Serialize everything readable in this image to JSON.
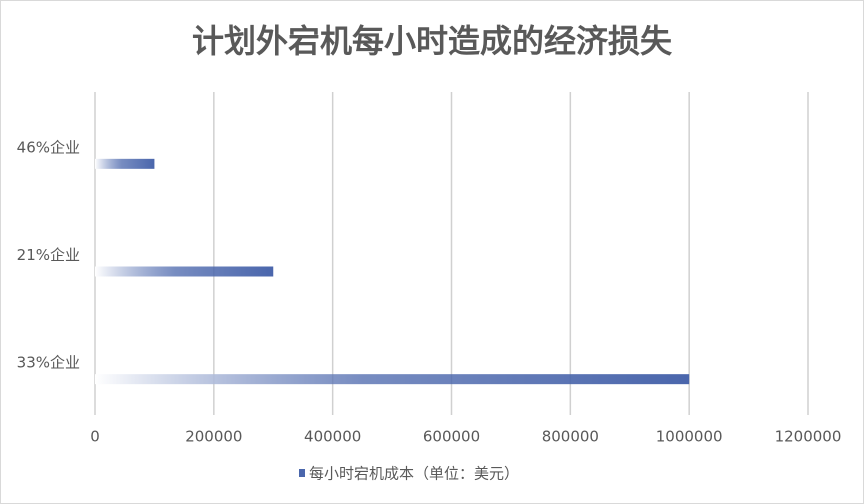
{
  "chart_data": {
    "type": "bar",
    "orientation": "horizontal",
    "title": "计划外宕机每小时造成的经济损失",
    "categories": [
      "46%企业",
      "21%企业",
      "33%企业"
    ],
    "series": [
      {
        "name": "每小时宕机成本（单位：美元）",
        "color": "#4a66ac",
        "values": [
          100000,
          300000,
          1000000
        ]
      }
    ],
    "xlim": [
      0,
      1200000
    ],
    "xticks": [
      0,
      200000,
      400000,
      600000,
      800000,
      1000000,
      1200000
    ],
    "grid": true,
    "legend": "bottom"
  }
}
